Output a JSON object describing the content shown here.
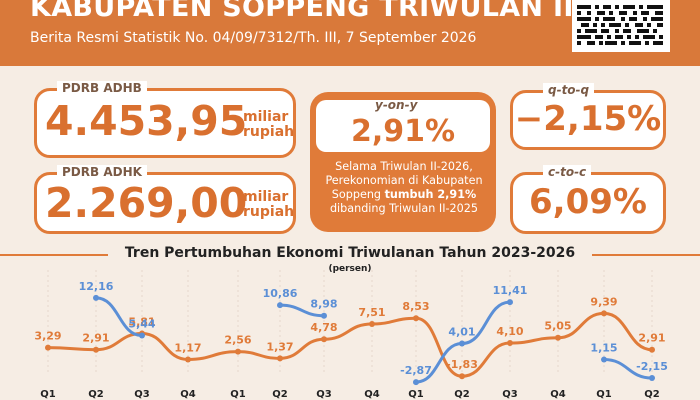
{
  "header": {
    "title": "KABUPATEN SOPPENG TRIWULAN II-2026",
    "subtitle": "Berita Resmi Statistik No. 04/09/7312/Th. III, 7 September 2026"
  },
  "pdrb_adhb": {
    "label": "PDRB ADHB",
    "value": "4.453,95",
    "unit1": "miliar",
    "unit2": "rupiah"
  },
  "pdrb_adhk": {
    "label": "PDRB ADHK",
    "value": "2.269,00",
    "unit1": "miliar",
    "unit2": "rupiah"
  },
  "yoy": {
    "label": "y-on-y",
    "value": "2,91%",
    "note_1": "Selama Triwulan II-2026,",
    "note_2": "Perekonomian di Kabupaten",
    "note_3a": "Soppeng ",
    "note_3b": "tumbuh 2,91%",
    "note_4": "dibanding Triwulan II-2025"
  },
  "qtoq": {
    "label": "q-to-q",
    "value": "−2,15%"
  },
  "ctoc": {
    "label": "c-to-c",
    "value": "6,09%"
  },
  "chart": {
    "title": "Tren Pertumbuhan Ekonomi Triwulanan Tahun 2023-2026",
    "subtitle": "(persen)"
  },
  "colors": {
    "orange": "#e07b39",
    "blue": "#5b8fd6",
    "header": "#d9793a"
  },
  "chart_data": {
    "type": "line",
    "categories": [
      "Q1",
      "Q2",
      "Q3",
      "Q4",
      "Q1",
      "Q2",
      "Q3",
      "Q4",
      "Q1",
      "Q2",
      "Q3",
      "Q4",
      "Q1",
      "Q2"
    ],
    "series": [
      {
        "values": [
          3.29,
          2.91,
          5.81,
          1.17,
          2.56,
          1.37,
          4.78,
          7.51,
          8.53,
          -1.83,
          4.1,
          5.05,
          9.39,
          2.91
        ],
        "labels": [
          "3,29",
          "2,91",
          "5,81",
          "1,17",
          "2,56",
          "1,37",
          "4,78",
          "7,51",
          "8,53",
          "-1,83",
          "4,10",
          "5,05",
          "9,39",
          "2,91"
        ],
        "color": "#e07b39"
      },
      {
        "values": [
          null,
          12.16,
          5.44,
          null,
          null,
          10.86,
          8.98,
          null,
          -2.87,
          4.01,
          11.41,
          null,
          1.15,
          -2.15
        ],
        "labels": [
          "",
          "12,16",
          "5,44",
          "",
          "",
          "10,86",
          "8,98",
          "",
          "-2,87",
          "4,01",
          "11,41",
          "",
          "1,15",
          "-2,15"
        ],
        "color": "#5b8fd6"
      }
    ]
  }
}
